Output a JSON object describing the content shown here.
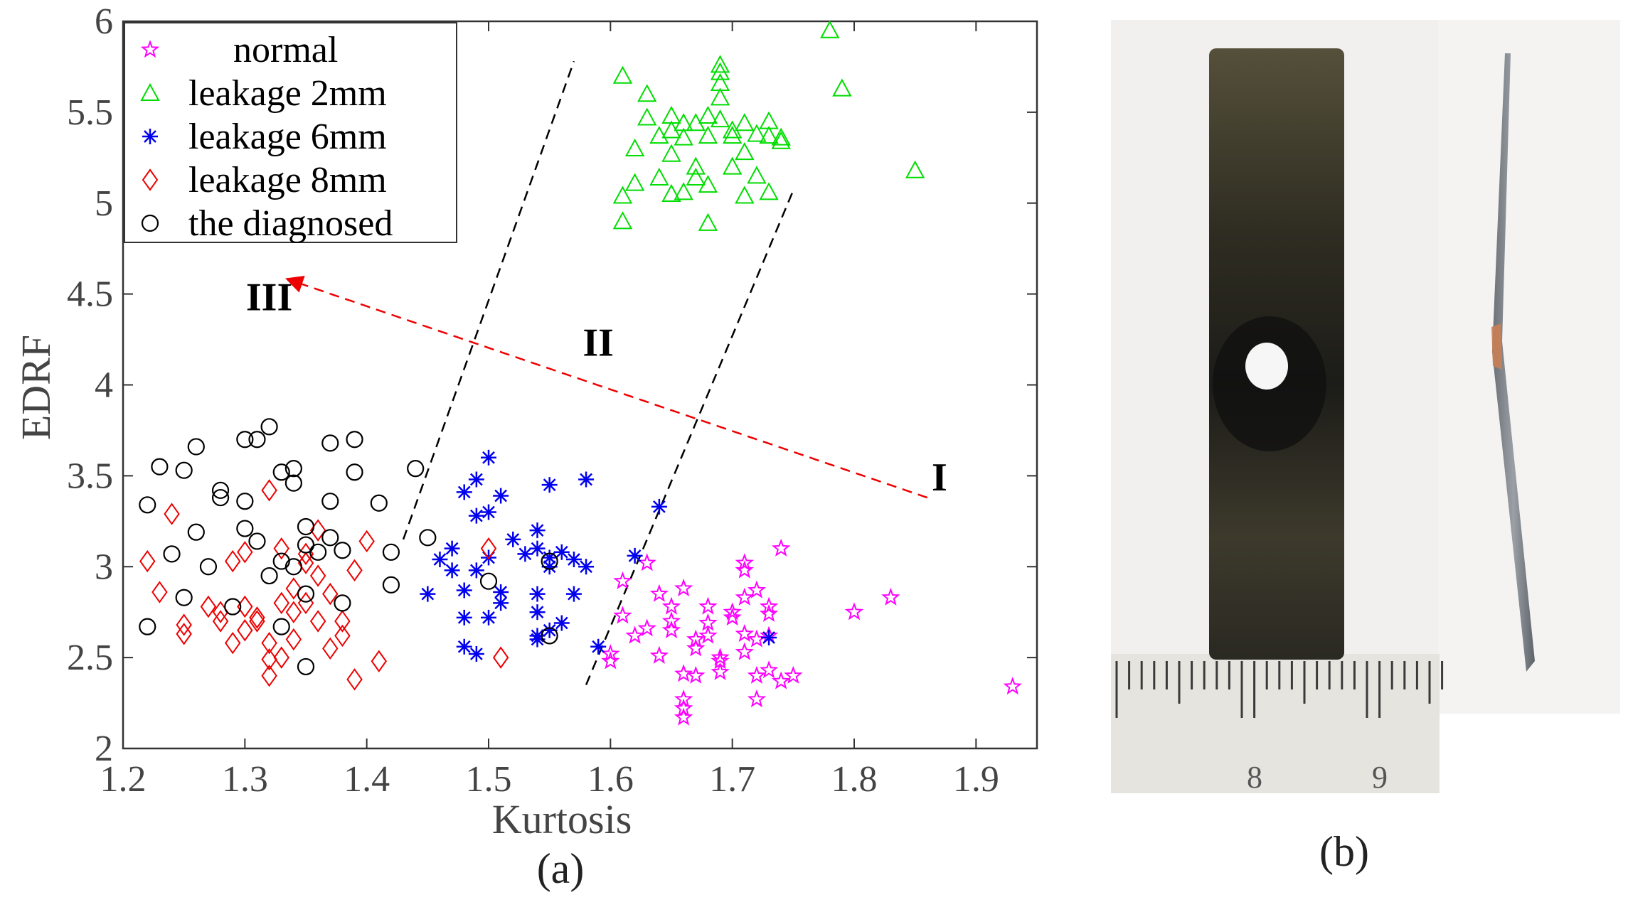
{
  "chart_data": {
    "type": "scatter",
    "xlabel": "Kurtosis",
    "ylabel": "EDRF",
    "xlim": [
      1.2,
      1.95
    ],
    "ylim": [
      2,
      6
    ],
    "xticks": [
      1.2,
      1.3,
      1.4,
      1.5,
      1.6,
      1.7,
      1.8,
      1.9
    ],
    "yticks": [
      2,
      2.5,
      3,
      3.5,
      4,
      4.5,
      5,
      5.5,
      6
    ],
    "xtick_labels": [
      "1.2",
      "1.3",
      "1.4",
      "1.5",
      "1.6",
      "1.7",
      "1.8",
      "1.9"
    ],
    "ytick_labels": [
      "2",
      "2.5",
      "3",
      "3.5",
      "4",
      "4.5",
      "5",
      "5.5",
      "6"
    ],
    "legend_position": "top-left",
    "series": [
      {
        "name": "normal",
        "marker": "star",
        "color": "#ff00ff",
        "points": [
          [
            1.6,
            2.52
          ],
          [
            1.6,
            2.48
          ],
          [
            1.61,
            2.92
          ],
          [
            1.61,
            2.73
          ],
          [
            1.62,
            2.62
          ],
          [
            1.63,
            3.02
          ],
          [
            1.63,
            2.66
          ],
          [
            1.64,
            2.85
          ],
          [
            1.64,
            2.51
          ],
          [
            1.65,
            2.78
          ],
          [
            1.65,
            2.7
          ],
          [
            1.65,
            2.65
          ],
          [
            1.66,
            2.88
          ],
          [
            1.66,
            2.41
          ],
          [
            1.66,
            2.27
          ],
          [
            1.66,
            2.22
          ],
          [
            1.66,
            2.17
          ],
          [
            1.67,
            2.6
          ],
          [
            1.67,
            2.55
          ],
          [
            1.67,
            2.4
          ],
          [
            1.68,
            2.78
          ],
          [
            1.68,
            2.69
          ],
          [
            1.68,
            2.62
          ],
          [
            1.69,
            2.5
          ],
          [
            1.69,
            2.48
          ],
          [
            1.69,
            2.42
          ],
          [
            1.7,
            2.75
          ],
          [
            1.7,
            2.72
          ],
          [
            1.71,
            3.02
          ],
          [
            1.71,
            2.98
          ],
          [
            1.71,
            2.83
          ],
          [
            1.71,
            2.63
          ],
          [
            1.71,
            2.53
          ],
          [
            1.72,
            2.87
          ],
          [
            1.72,
            2.6
          ],
          [
            1.72,
            2.4
          ],
          [
            1.72,
            2.27
          ],
          [
            1.73,
            2.78
          ],
          [
            1.73,
            2.74
          ],
          [
            1.73,
            2.62
          ],
          [
            1.73,
            2.43
          ],
          [
            1.74,
            2.37
          ],
          [
            1.74,
            3.1
          ],
          [
            1.75,
            2.4
          ],
          [
            1.8,
            2.75
          ],
          [
            1.83,
            2.83
          ],
          [
            1.93,
            2.34
          ]
        ]
      },
      {
        "name": "leakage 2mm",
        "marker": "triangle",
        "color": "#00dd00",
        "points": [
          [
            1.61,
            5.7
          ],
          [
            1.61,
            4.9
          ],
          [
            1.61,
            5.04
          ],
          [
            1.62,
            5.3
          ],
          [
            1.62,
            5.11
          ],
          [
            1.63,
            5.47
          ],
          [
            1.63,
            5.6
          ],
          [
            1.64,
            5.14
          ],
          [
            1.64,
            5.37
          ],
          [
            1.65,
            5.4
          ],
          [
            1.65,
            5.48
          ],
          [
            1.65,
            5.27
          ],
          [
            1.65,
            5.05
          ],
          [
            1.66,
            5.36
          ],
          [
            1.66,
            5.06
          ],
          [
            1.66,
            5.44
          ],
          [
            1.67,
            5.44
          ],
          [
            1.67,
            5.2
          ],
          [
            1.67,
            5.14
          ],
          [
            1.68,
            5.1
          ],
          [
            1.68,
            5.37
          ],
          [
            1.68,
            5.48
          ],
          [
            1.68,
            4.89
          ],
          [
            1.69,
            5.72
          ],
          [
            1.69,
            5.76
          ],
          [
            1.69,
            5.66
          ],
          [
            1.69,
            5.58
          ],
          [
            1.69,
            5.46
          ],
          [
            1.7,
            5.37
          ],
          [
            1.7,
            5.2
          ],
          [
            1.7,
            5.4
          ],
          [
            1.71,
            5.28
          ],
          [
            1.71,
            5.44
          ],
          [
            1.71,
            5.04
          ],
          [
            1.72,
            5.38
          ],
          [
            1.72,
            5.15
          ],
          [
            1.73,
            5.37
          ],
          [
            1.73,
            5.06
          ],
          [
            1.73,
            5.45
          ],
          [
            1.74,
            5.34
          ],
          [
            1.74,
            5.36
          ],
          [
            1.78,
            5.95
          ],
          [
            1.79,
            5.63
          ],
          [
            1.85,
            5.18
          ]
        ]
      },
      {
        "name": "leakage 6mm",
        "marker": "asterisk",
        "color": "#0000ee",
        "points": [
          [
            1.45,
            2.85
          ],
          [
            1.46,
            3.04
          ],
          [
            1.47,
            3.1
          ],
          [
            1.47,
            2.98
          ],
          [
            1.48,
            3.41
          ],
          [
            1.48,
            2.87
          ],
          [
            1.48,
            2.72
          ],
          [
            1.48,
            2.56
          ],
          [
            1.49,
            3.48
          ],
          [
            1.49,
            3.28
          ],
          [
            1.49,
            2.98
          ],
          [
            1.49,
            2.52
          ],
          [
            1.5,
            3.6
          ],
          [
            1.5,
            3.3
          ],
          [
            1.5,
            3.05
          ],
          [
            1.5,
            2.72
          ],
          [
            1.51,
            3.39
          ],
          [
            1.51,
            2.86
          ],
          [
            1.51,
            2.8
          ],
          [
            1.52,
            3.15
          ],
          [
            1.53,
            3.07
          ],
          [
            1.54,
            3.2
          ],
          [
            1.54,
            3.1
          ],
          [
            1.54,
            2.85
          ],
          [
            1.54,
            2.75
          ],
          [
            1.54,
            2.62
          ],
          [
            1.54,
            2.6
          ],
          [
            1.55,
            3.45
          ],
          [
            1.55,
            3.05
          ],
          [
            1.55,
            3.0
          ],
          [
            1.55,
            2.65
          ],
          [
            1.56,
            3.08
          ],
          [
            1.56,
            2.69
          ],
          [
            1.57,
            3.04
          ],
          [
            1.57,
            2.85
          ],
          [
            1.58,
            3.48
          ],
          [
            1.58,
            3.0
          ],
          [
            1.59,
            2.56
          ],
          [
            1.62,
            3.06
          ],
          [
            1.64,
            3.33
          ],
          [
            1.73,
            2.61
          ]
        ]
      },
      {
        "name": "leakage 8mm",
        "marker": "diamond",
        "color": "#ee0000",
        "points": [
          [
            1.22,
            3.03
          ],
          [
            1.23,
            2.86
          ],
          [
            1.24,
            3.29
          ],
          [
            1.25,
            2.63
          ],
          [
            1.25,
            2.68
          ],
          [
            1.27,
            2.78
          ],
          [
            1.28,
            2.7
          ],
          [
            1.28,
            2.75
          ],
          [
            1.29,
            2.58
          ],
          [
            1.29,
            3.03
          ],
          [
            1.3,
            3.08
          ],
          [
            1.3,
            2.65
          ],
          [
            1.3,
            2.78
          ],
          [
            1.31,
            2.7
          ],
          [
            1.31,
            2.72
          ],
          [
            1.32,
            2.49
          ],
          [
            1.32,
            2.58
          ],
          [
            1.32,
            2.4
          ],
          [
            1.32,
            3.42
          ],
          [
            1.33,
            3.1
          ],
          [
            1.33,
            2.8
          ],
          [
            1.33,
            2.5
          ],
          [
            1.34,
            2.6
          ],
          [
            1.34,
            2.75
          ],
          [
            1.34,
            2.88
          ],
          [
            1.35,
            3.07
          ],
          [
            1.35,
            3.02
          ],
          [
            1.35,
            2.8
          ],
          [
            1.36,
            3.2
          ],
          [
            1.36,
            2.95
          ],
          [
            1.36,
            2.7
          ],
          [
            1.37,
            2.85
          ],
          [
            1.37,
            2.55
          ],
          [
            1.38,
            2.7
          ],
          [
            1.38,
            2.62
          ],
          [
            1.39,
            2.98
          ],
          [
            1.39,
            2.38
          ],
          [
            1.4,
            3.14
          ],
          [
            1.41,
            2.48
          ],
          [
            1.5,
            3.1
          ],
          [
            1.51,
            2.5
          ]
        ]
      },
      {
        "name": "the diagnosed",
        "marker": "circle",
        "color": "#000000",
        "points": [
          [
            1.22,
            3.34
          ],
          [
            1.22,
            2.67
          ],
          [
            1.23,
            3.55
          ],
          [
            1.24,
            3.07
          ],
          [
            1.25,
            3.53
          ],
          [
            1.25,
            2.83
          ],
          [
            1.26,
            3.66
          ],
          [
            1.26,
            3.19
          ],
          [
            1.27,
            3.0
          ],
          [
            1.28,
            3.42
          ],
          [
            1.28,
            3.38
          ],
          [
            1.29,
            2.78
          ],
          [
            1.3,
            3.7
          ],
          [
            1.3,
            3.21
          ],
          [
            1.3,
            3.36
          ],
          [
            1.31,
            3.7
          ],
          [
            1.31,
            3.14
          ],
          [
            1.32,
            2.95
          ],
          [
            1.32,
            3.77
          ],
          [
            1.33,
            3.52
          ],
          [
            1.33,
            2.67
          ],
          [
            1.33,
            3.03
          ],
          [
            1.34,
            3.0
          ],
          [
            1.34,
            3.54
          ],
          [
            1.34,
            3.46
          ],
          [
            1.35,
            3.22
          ],
          [
            1.35,
            3.12
          ],
          [
            1.35,
            2.85
          ],
          [
            1.35,
            2.45
          ],
          [
            1.36,
            3.08
          ],
          [
            1.37,
            3.68
          ],
          [
            1.37,
            3.36
          ],
          [
            1.37,
            3.16
          ],
          [
            1.38,
            3.09
          ],
          [
            1.38,
            2.8
          ],
          [
            1.39,
            3.7
          ],
          [
            1.39,
            3.52
          ],
          [
            1.41,
            3.35
          ],
          [
            1.42,
            2.9
          ],
          [
            1.42,
            3.08
          ],
          [
            1.44,
            3.54
          ],
          [
            1.45,
            3.16
          ],
          [
            1.5,
            2.92
          ],
          [
            1.55,
            3.03
          ],
          [
            1.55,
            2.62
          ]
        ]
      }
    ],
    "boundaries": [
      {
        "name": "boundary-left",
        "from": [
          1.43,
          3.15
        ],
        "to": [
          1.57,
          5.78
        ]
      },
      {
        "name": "boundary-right",
        "from": [
          1.58,
          2.35
        ],
        "to": [
          1.75,
          5.07
        ]
      }
    ],
    "arrow": {
      "from": [
        1.86,
        3.38
      ],
      "to": [
        1.34,
        4.57
      ],
      "color": "#ee0000"
    },
    "region_labels": [
      {
        "text": "I",
        "x": 1.87,
        "y": 3.42
      },
      {
        "text": "II",
        "x": 1.59,
        "y": 4.16
      },
      {
        "text": "III",
        "x": 1.32,
        "y": 4.41
      }
    ]
  },
  "captions": {
    "a": "(a)",
    "b": "(b)"
  },
  "photo": {
    "ruler_labels": [
      "8",
      "9"
    ]
  }
}
